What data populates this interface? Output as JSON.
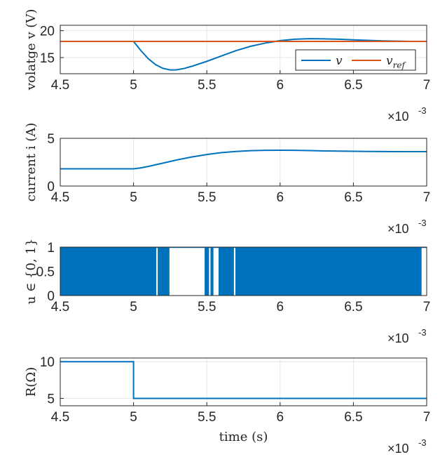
{
  "chart_data": [
    {
      "type": "line",
      "ylabel": "volatge v (V)",
      "xlim": [
        0.0045,
        0.007
      ],
      "ylim": [
        12,
        21
      ],
      "yticks": [
        "15",
        "20"
      ],
      "xticks": [
        "4.5",
        "5",
        "5.5",
        "6",
        "6.5",
        "7"
      ],
      "x_multiplier": "×10",
      "x_multiplier_exp": "-3",
      "grid": true,
      "legend_position": "bottom-right",
      "series": [
        {
          "name": "v",
          "color": "#0072BD",
          "x": [
            0.0045,
            0.005,
            0.00505,
            0.0051,
            0.00515,
            0.0052,
            0.00525,
            0.00528,
            0.0053,
            0.00535,
            0.0054,
            0.0055,
            0.0056,
            0.0057,
            0.0058,
            0.0059,
            0.006,
            0.0061,
            0.0062,
            0.0063,
            0.0064,
            0.0065,
            0.0066,
            0.0067,
            0.0068,
            0.0069,
            0.007
          ],
          "y": [
            18,
            18,
            16.3,
            14.8,
            13.7,
            13.0,
            12.7,
            12.7,
            12.75,
            13.0,
            13.4,
            14.3,
            15.3,
            16.3,
            17.1,
            17.7,
            18.15,
            18.4,
            18.5,
            18.48,
            18.4,
            18.3,
            18.2,
            18.1,
            18.05,
            18.0,
            18.0
          ]
        },
        {
          "name": "vref",
          "color": "#D95319",
          "x": [
            0.0045,
            0.007
          ],
          "y": [
            18,
            18
          ]
        }
      ]
    },
    {
      "type": "line",
      "ylabel": "current i (A)",
      "xlim": [
        0.0045,
        0.007
      ],
      "ylim": [
        0,
        5
      ],
      "yticks": [
        "0",
        "5"
      ],
      "xticks": [
        "4.5",
        "5",
        "5.5",
        "6",
        "6.5",
        "7"
      ],
      "x_multiplier": "×10",
      "x_multiplier_exp": "-3",
      "grid": true,
      "series": [
        {
          "name": "",
          "color": "#0072BD",
          "x": [
            0.0045,
            0.005,
            0.00505,
            0.0051,
            0.0052,
            0.0053,
            0.0054,
            0.0055,
            0.0056,
            0.0057,
            0.0058,
            0.0059,
            0.006,
            0.0061,
            0.0062,
            0.0063,
            0.0064,
            0.0065,
            0.0066,
            0.0067,
            0.0068,
            0.0069,
            0.007
          ],
          "y": [
            1.8,
            1.8,
            1.9,
            2.05,
            2.4,
            2.75,
            3.05,
            3.3,
            3.5,
            3.62,
            3.7,
            3.74,
            3.75,
            3.74,
            3.71,
            3.68,
            3.66,
            3.64,
            3.62,
            3.61,
            3.6,
            3.6,
            3.6
          ]
        }
      ]
    },
    {
      "type": "line",
      "ylabel": "u ∈ {0, 1}",
      "xlim": [
        0.0045,
        0.007
      ],
      "ylim": [
        0,
        1
      ],
      "yticks": [
        "0",
        "0.5",
        "1"
      ],
      "xticks": [
        "4.5",
        "5",
        "5.5",
        "6",
        "6.5",
        "7"
      ],
      "x_multiplier": "×10",
      "x_multiplier_exp": "-3",
      "grid": true,
      "series": [
        {
          "name": "",
          "color": "#0072BD",
          "switching_between": [
            0,
            1
          ],
          "gaps_u_equals_1": [
            [
              0.005155,
              0.005165
            ],
            [
              0.005245,
              0.005485
            ],
            [
              0.005515,
              0.005525
            ],
            [
              0.005545,
              0.00558
            ],
            [
              0.005685,
              0.005695
            ],
            [
              0.006965,
              0.007
            ]
          ]
        }
      ]
    },
    {
      "type": "line",
      "ylabel": "R(Ω)",
      "xlabel": "time (s)",
      "xlim": [
        0.0045,
        0.007
      ],
      "ylim": [
        4,
        10.5
      ],
      "yticks": [
        "5",
        "10"
      ],
      "xticks": [
        "4.5",
        "5",
        "5.5",
        "6",
        "6.5",
        "7"
      ],
      "x_multiplier": "×10",
      "x_multiplier_exp": "-3",
      "grid": true,
      "series": [
        {
          "name": "",
          "color": "#0072BD",
          "x": [
            0.0045,
            0.005,
            0.005,
            0.007
          ],
          "y": [
            10,
            10,
            5,
            5
          ]
        }
      ]
    }
  ]
}
